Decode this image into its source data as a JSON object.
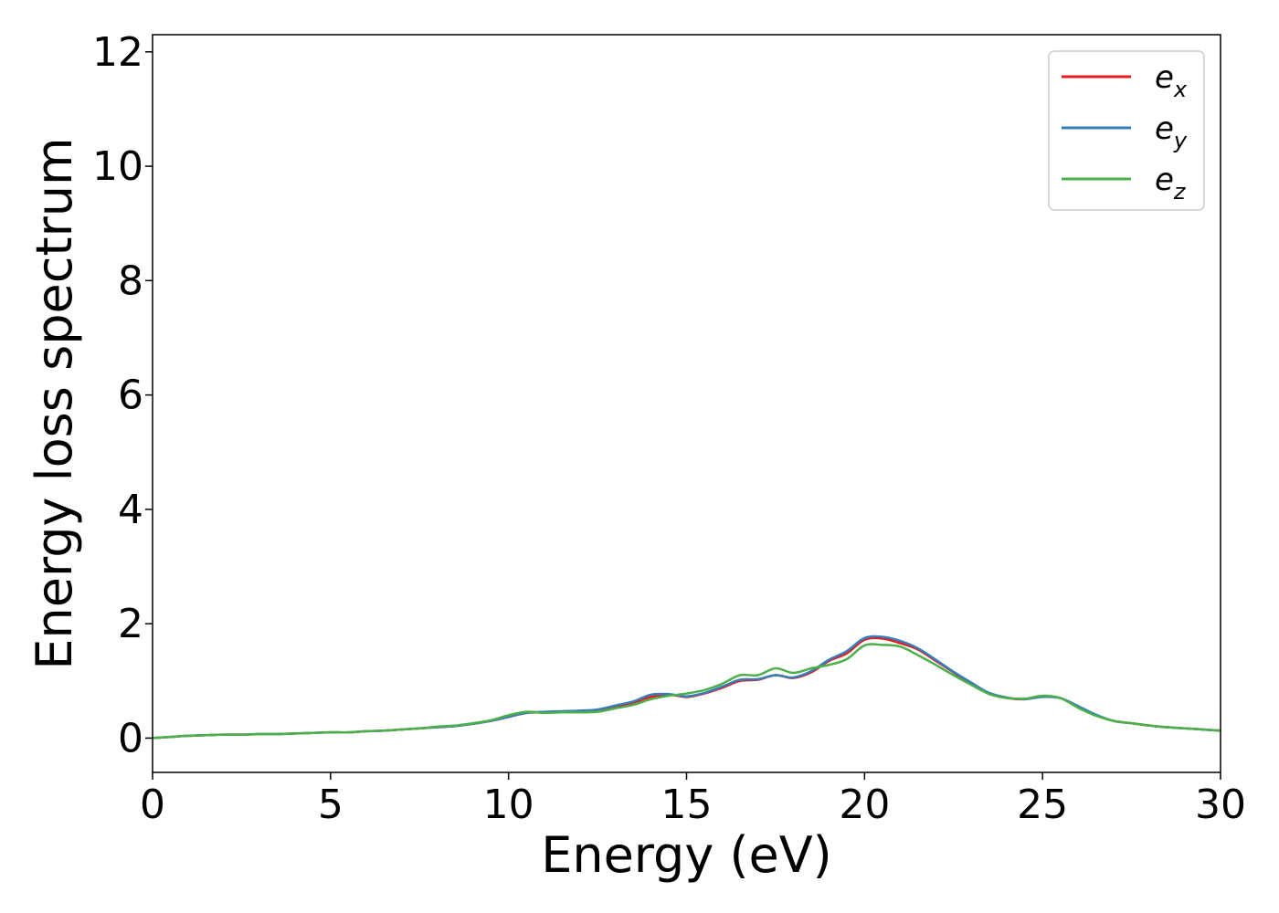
{
  "chart_data": {
    "type": "line",
    "xlabel": "Energy (eV)",
    "ylabel": "Energy loss spectrum",
    "xlim": [
      0,
      30
    ],
    "ylim": [
      -0.6,
      12.3
    ],
    "xticks": [
      0,
      5,
      10,
      15,
      20,
      25,
      30
    ],
    "yticks": [
      0,
      2,
      4,
      6,
      8,
      10,
      12
    ],
    "grid": false,
    "legend_position": "top-right",
    "x": [
      0,
      0.5,
      1,
      1.5,
      2,
      2.5,
      3,
      3.5,
      4,
      4.5,
      5,
      5.5,
      6,
      6.5,
      7,
      7.5,
      8,
      8.5,
      9,
      9.5,
      10,
      10.5,
      11,
      11.5,
      12,
      12.5,
      13,
      13.5,
      14,
      14.5,
      15,
      15.5,
      16,
      16.5,
      17,
      17.5,
      18,
      18.5,
      19,
      19.5,
      20,
      20.5,
      21,
      21.5,
      22,
      22.5,
      23,
      23.5,
      24,
      24.5,
      25,
      25.5,
      26,
      26.5,
      27,
      27.5,
      28,
      28.5,
      29,
      29.5,
      30
    ],
    "series": [
      {
        "name": "e",
        "subscript": "x",
        "color": "#e41a1c",
        "values": [
          0,
          0.02,
          0.04,
          0.05,
          0.06,
          0.06,
          0.07,
          0.07,
          0.08,
          0.09,
          0.1,
          0.1,
          0.12,
          0.13,
          0.15,
          0.17,
          0.19,
          0.21,
          0.25,
          0.3,
          0.37,
          0.44,
          0.45,
          0.46,
          0.47,
          0.49,
          0.55,
          0.62,
          0.72,
          0.76,
          0.72,
          0.78,
          0.88,
          1.0,
          1.02,
          1.1,
          1.05,
          1.15,
          1.35,
          1.48,
          1.72,
          1.74,
          1.66,
          1.55,
          1.35,
          1.15,
          0.95,
          0.78,
          0.7,
          0.68,
          0.73,
          0.7,
          0.55,
          0.4,
          0.3,
          0.26,
          0.22,
          0.19,
          0.17,
          0.15,
          0.13
        ]
      },
      {
        "name": "e",
        "subscript": "y",
        "color": "#377eb8",
        "values": [
          0,
          0.02,
          0.04,
          0.05,
          0.06,
          0.06,
          0.07,
          0.07,
          0.08,
          0.09,
          0.1,
          0.1,
          0.12,
          0.13,
          0.15,
          0.17,
          0.19,
          0.21,
          0.25,
          0.3,
          0.37,
          0.44,
          0.46,
          0.47,
          0.48,
          0.5,
          0.57,
          0.64,
          0.76,
          0.77,
          0.73,
          0.79,
          0.9,
          1.02,
          1.03,
          1.1,
          1.06,
          1.17,
          1.37,
          1.52,
          1.75,
          1.77,
          1.7,
          1.57,
          1.37,
          1.16,
          0.97,
          0.79,
          0.71,
          0.68,
          0.72,
          0.7,
          0.56,
          0.41,
          0.3,
          0.26,
          0.22,
          0.19,
          0.17,
          0.15,
          0.13
        ]
      },
      {
        "name": "e",
        "subscript": "z",
        "color": "#4daf4a",
        "values": [
          0,
          0.02,
          0.04,
          0.05,
          0.06,
          0.06,
          0.07,
          0.07,
          0.08,
          0.09,
          0.1,
          0.1,
          0.12,
          0.13,
          0.15,
          0.17,
          0.2,
          0.22,
          0.26,
          0.31,
          0.4,
          0.46,
          0.44,
          0.45,
          0.45,
          0.46,
          0.52,
          0.58,
          0.68,
          0.74,
          0.78,
          0.84,
          0.95,
          1.1,
          1.1,
          1.22,
          1.14,
          1.22,
          1.28,
          1.38,
          1.62,
          1.63,
          1.6,
          1.45,
          1.28,
          1.1,
          0.93,
          0.77,
          0.7,
          0.69,
          0.74,
          0.7,
          0.53,
          0.39,
          0.3,
          0.26,
          0.22,
          0.19,
          0.17,
          0.15,
          0.13
        ]
      }
    ]
  }
}
